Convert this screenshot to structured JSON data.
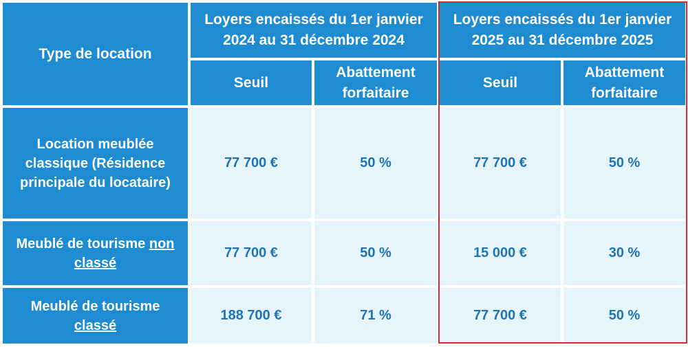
{
  "headers": {
    "type": "Type de location",
    "period_2024": "Loyers encaissés du 1er janvier 2024 au 31 décembre 2024",
    "period_2025": "Loyers encaissés du 1er janvier 2025 au 31 décembre 2025",
    "seuil": "Seuil",
    "abattement": "Abattement forfaitaire"
  },
  "rows": [
    {
      "label": "Location meublée classique (Résidence principale du locataire)",
      "seuil_2024": "77 700 €",
      "abattement_2024": "50 %",
      "seuil_2025": "77 700 €",
      "abattement_2025": "50 %"
    },
    {
      "label_main": "Meublé de tourisme ",
      "label_underline_1": "non",
      "label_underline_2": "classé ",
      "seuil_2024": "77 700 €",
      "abattement_2024": "50 %",
      "seuil_2025": "15 000 €",
      "abattement_2025": "30 %"
    },
    {
      "label_main": "Meublé de tourisme",
      "label_underline": "classé",
      "seuil_2024": "188 700 €",
      "abattement_2024": "71 %",
      "seuil_2025": "77 700 €",
      "abattement_2025": "50 %"
    }
  ],
  "colors": {
    "header_bg": "#1f8bd0",
    "cell_bg": "#e6f4fc",
    "value_text": "#1f74b4",
    "highlight_border": "#d62b2b"
  }
}
